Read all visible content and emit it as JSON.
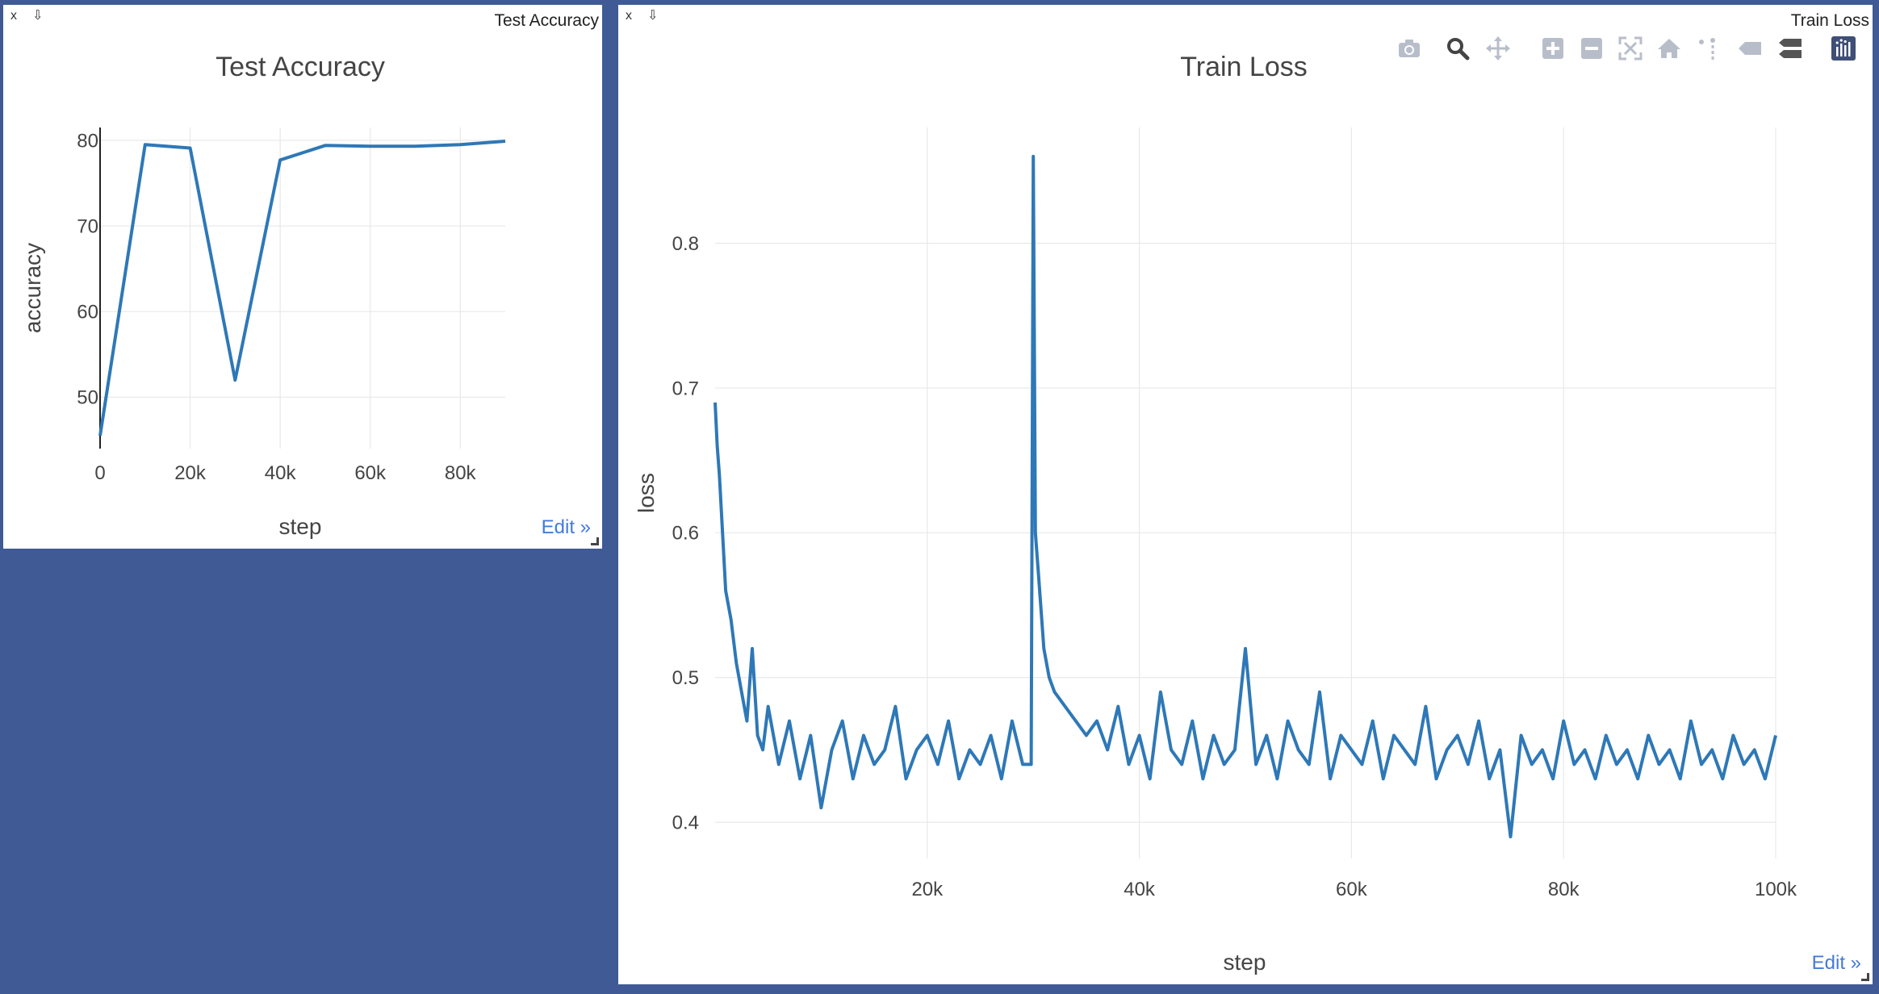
{
  "panes": {
    "accuracy": {
      "close_label": "x",
      "pin_label": "⇩",
      "window_title": "Test Accuracy",
      "edit_label": "Edit »"
    },
    "loss": {
      "close_label": "x",
      "pin_label": "⇩",
      "window_title": "Train Loss",
      "edit_label": "Edit »"
    }
  },
  "modebar": {
    "icons": [
      "camera-icon",
      "zoom-icon",
      "pan-icon",
      "zoom-in-icon",
      "zoom-out-icon",
      "autoscale-icon",
      "reset-axes-icon",
      "spike-lines-icon",
      "hover-closest-icon",
      "hover-compare-icon",
      "plotly-logo-icon"
    ],
    "icon_color": "#b8bec9",
    "active_color": "#444444",
    "logo_color": "#3f4f75"
  },
  "colors": {
    "line": "#2e78b7",
    "grid": "#e8e8e8",
    "text": "#444444",
    "background": "#3f5a94"
  },
  "chart_data": [
    {
      "type": "line",
      "title": "Test Accuracy",
      "xlabel": "step",
      "ylabel": "accuracy",
      "xlim": [
        0,
        90000
      ],
      "ylim": [
        44,
        81.5
      ],
      "xticks": [
        0,
        20000,
        40000,
        60000,
        80000
      ],
      "xtick_labels": [
        "0",
        "20k",
        "40k",
        "60k",
        "80k"
      ],
      "yticks": [
        50,
        60,
        70,
        80
      ],
      "ytick_labels": [
        "50",
        "60",
        "70",
        "80"
      ],
      "series": [
        {
          "name": "accuracy",
          "x": [
            0,
            10000,
            20000,
            30000,
            40000,
            50000,
            60000,
            70000,
            80000,
            90000
          ],
          "y": [
            45.5,
            79.5,
            79.1,
            52.0,
            77.7,
            79.4,
            79.3,
            79.3,
            79.5,
            79.9
          ]
        }
      ]
    },
    {
      "type": "line",
      "title": "Train Loss",
      "xlabel": "step",
      "ylabel": "loss",
      "xlim": [
        0,
        100000
      ],
      "ylim": [
        0.375,
        0.88
      ],
      "xticks": [
        20000,
        40000,
        60000,
        80000,
        100000
      ],
      "xtick_labels": [
        "20k",
        "40k",
        "60k",
        "80k",
        "100k"
      ],
      "yticks": [
        0.4,
        0.5,
        0.6,
        0.7,
        0.8
      ],
      "ytick_labels": [
        "0.4",
        "0.5",
        "0.6",
        "0.7",
        "0.8"
      ],
      "series": [
        {
          "name": "loss",
          "x": [
            0,
            200,
            400,
            700,
            1000,
            1500,
            2000,
            2500,
            3000,
            3500,
            4000,
            4500,
            5000,
            6000,
            7000,
            8000,
            9000,
            10000,
            11000,
            12000,
            13000,
            14000,
            15000,
            16000,
            17000,
            18000,
            19000,
            20000,
            21000,
            22000,
            23000,
            24000,
            25000,
            26000,
            27000,
            28000,
            29000,
            29800,
            30000,
            30200,
            30500,
            31000,
            31500,
            32000,
            33000,
            34000,
            35000,
            36000,
            37000,
            38000,
            39000,
            40000,
            41000,
            42000,
            43000,
            44000,
            45000,
            46000,
            47000,
            48000,
            49000,
            50000,
            51000,
            52000,
            53000,
            54000,
            55000,
            56000,
            57000,
            58000,
            59000,
            60000,
            61000,
            62000,
            63000,
            64000,
            65000,
            66000,
            67000,
            68000,
            69000,
            70000,
            71000,
            72000,
            73000,
            74000,
            75000,
            76000,
            77000,
            78000,
            79000,
            80000,
            81000,
            82000,
            83000,
            84000,
            85000,
            86000,
            87000,
            88000,
            89000,
            90000,
            91000,
            92000,
            93000,
            94000,
            95000,
            96000,
            97000,
            98000,
            99000,
            100000
          ],
          "y": [
            0.69,
            0.66,
            0.64,
            0.6,
            0.56,
            0.54,
            0.51,
            0.49,
            0.47,
            0.52,
            0.46,
            0.45,
            0.48,
            0.44,
            0.47,
            0.43,
            0.46,
            0.41,
            0.45,
            0.47,
            0.43,
            0.46,
            0.44,
            0.45,
            0.48,
            0.43,
            0.45,
            0.46,
            0.44,
            0.47,
            0.43,
            0.45,
            0.44,
            0.46,
            0.43,
            0.47,
            0.44,
            0.44,
            0.86,
            0.6,
            0.57,
            0.52,
            0.5,
            0.49,
            0.48,
            0.47,
            0.46,
            0.47,
            0.45,
            0.48,
            0.44,
            0.46,
            0.43,
            0.49,
            0.45,
            0.44,
            0.47,
            0.43,
            0.46,
            0.44,
            0.45,
            0.52,
            0.44,
            0.46,
            0.43,
            0.47,
            0.45,
            0.44,
            0.49,
            0.43,
            0.46,
            0.45,
            0.44,
            0.47,
            0.43,
            0.46,
            0.45,
            0.44,
            0.48,
            0.43,
            0.45,
            0.46,
            0.44,
            0.47,
            0.43,
            0.45,
            0.39,
            0.46,
            0.44,
            0.45,
            0.43,
            0.47,
            0.44,
            0.45,
            0.43,
            0.46,
            0.44,
            0.45,
            0.43,
            0.46,
            0.44,
            0.45,
            0.43,
            0.47,
            0.44,
            0.45,
            0.43,
            0.46,
            0.44,
            0.45,
            0.43,
            0.46
          ]
        }
      ]
    }
  ]
}
